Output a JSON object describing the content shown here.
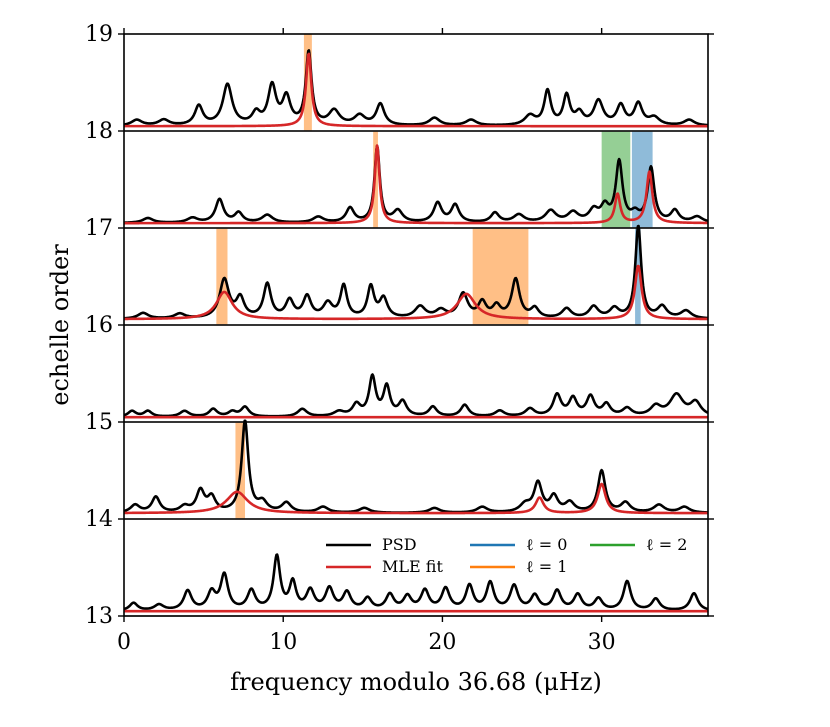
{
  "chart_data": {
    "type": "line",
    "title": "",
    "xlabel": "frequency modulo 36.68 (μHz)",
    "ylabel": "echelle order",
    "xlim": [
      0,
      36.68
    ],
    "ylim": [
      13,
      19
    ],
    "xticks": [
      0,
      10,
      20,
      30
    ],
    "yticks": [
      13,
      14,
      15,
      16,
      17,
      18,
      19
    ],
    "legend": {
      "position": "bottom-right",
      "entries": [
        {
          "label": "PSD",
          "color": "#000000"
        },
        {
          "label": "MLE fit",
          "color": "#d62728"
        },
        {
          "label": "ℓ = 0",
          "color": "#1f77b4"
        },
        {
          "label": "ℓ = 1",
          "color": "#ff7f0e"
        },
        {
          "label": "ℓ = 2",
          "color": "#2ca02c"
        }
      ]
    },
    "orders": [
      {
        "order": 18,
        "baseline": 18.05,
        "psd_peaks": [
          [
            0.8,
            0.06,
            0.4
          ],
          [
            2.5,
            0.06,
            0.4
          ],
          [
            4.7,
            0.2,
            0.3
          ],
          [
            6.5,
            0.42,
            0.35
          ],
          [
            8.3,
            0.12,
            0.3
          ],
          [
            9.3,
            0.4,
            0.3
          ],
          [
            10.2,
            0.28,
            0.3
          ],
          [
            11.6,
            0.75,
            0.22
          ],
          [
            13.2,
            0.15,
            0.4
          ],
          [
            14.8,
            0.1,
            0.4
          ],
          [
            16.1,
            0.22,
            0.3
          ],
          [
            19.5,
            0.08,
            0.4
          ],
          [
            21.8,
            0.06,
            0.4
          ],
          [
            25.5,
            0.1,
            0.4
          ],
          [
            26.6,
            0.35,
            0.25
          ],
          [
            27.8,
            0.3,
            0.25
          ],
          [
            28.6,
            0.12,
            0.3
          ],
          [
            29.8,
            0.25,
            0.35
          ],
          [
            31.2,
            0.2,
            0.3
          ],
          [
            32.3,
            0.22,
            0.3
          ],
          [
            33.3,
            0.08,
            0.4
          ],
          [
            35.5,
            0.06,
            0.4
          ]
        ],
        "fit_peaks": [
          [
            11.6,
            0.75,
            0.2
          ]
        ],
        "bands": [
          {
            "l": 1,
            "start": 11.3,
            "end": 11.8
          }
        ]
      },
      {
        "order": 17,
        "baseline": 17.05,
        "psd_peaks": [
          [
            1.5,
            0.05,
            0.4
          ],
          [
            4.3,
            0.05,
            0.4
          ],
          [
            6.0,
            0.24,
            0.3
          ],
          [
            7.2,
            0.1,
            0.3
          ],
          [
            9.0,
            0.08,
            0.4
          ],
          [
            12.2,
            0.06,
            0.4
          ],
          [
            14.2,
            0.15,
            0.3
          ],
          [
            15.9,
            0.78,
            0.2
          ],
          [
            17.2,
            0.12,
            0.35
          ],
          [
            19.7,
            0.2,
            0.3
          ],
          [
            20.8,
            0.18,
            0.3
          ],
          [
            23.3,
            0.1,
            0.3
          ],
          [
            24.8,
            0.08,
            0.4
          ],
          [
            26.8,
            0.12,
            0.4
          ],
          [
            28.2,
            0.1,
            0.4
          ],
          [
            29.5,
            0.12,
            0.35
          ],
          [
            30.2,
            0.15,
            0.3
          ],
          [
            31.1,
            0.62,
            0.25
          ],
          [
            32.1,
            0.08,
            0.3
          ],
          [
            33.1,
            0.56,
            0.25
          ],
          [
            34.6,
            0.12,
            0.3
          ],
          [
            36.0,
            0.06,
            0.4
          ]
        ],
        "fit_peaks": [
          [
            15.9,
            0.8,
            0.18
          ],
          [
            31.0,
            0.3,
            0.2
          ],
          [
            33.0,
            0.53,
            0.22
          ]
        ],
        "bands": [
          {
            "l": 1,
            "start": 15.65,
            "end": 15.95
          },
          {
            "l": 2,
            "start": 30.0,
            "end": 31.8
          },
          {
            "l": 0,
            "start": 31.9,
            "end": 33.2
          }
        ]
      },
      {
        "order": 16,
        "baseline": 16.06,
        "psd_peaks": [
          [
            1.2,
            0.06,
            0.4
          ],
          [
            3.5,
            0.05,
            0.4
          ],
          [
            6.3,
            0.4,
            0.35
          ],
          [
            7.3,
            0.2,
            0.3
          ],
          [
            9.0,
            0.35,
            0.28
          ],
          [
            10.4,
            0.18,
            0.3
          ],
          [
            11.5,
            0.22,
            0.3
          ],
          [
            12.8,
            0.15,
            0.35
          ],
          [
            13.8,
            0.33,
            0.25
          ],
          [
            15.5,
            0.32,
            0.25
          ],
          [
            16.3,
            0.2,
            0.3
          ],
          [
            18.6,
            0.12,
            0.4
          ],
          [
            19.9,
            0.08,
            0.4
          ],
          [
            21.3,
            0.25,
            0.35
          ],
          [
            22.5,
            0.16,
            0.3
          ],
          [
            23.4,
            0.12,
            0.3
          ],
          [
            24.6,
            0.4,
            0.3
          ],
          [
            25.8,
            0.1,
            0.3
          ],
          [
            27.8,
            0.1,
            0.35
          ],
          [
            29.5,
            0.12,
            0.35
          ],
          [
            30.8,
            0.1,
            0.35
          ],
          [
            32.3,
            0.95,
            0.22
          ],
          [
            33.8,
            0.12,
            0.35
          ],
          [
            35.3,
            0.08,
            0.4
          ]
        ],
        "fit_peaks": [
          [
            6.3,
            0.28,
            0.6
          ],
          [
            21.5,
            0.26,
            0.7
          ],
          [
            32.3,
            0.55,
            0.25
          ]
        ],
        "bands": [
          {
            "l": 1,
            "start": 5.8,
            "end": 6.5
          },
          {
            "l": 1,
            "start": 21.9,
            "end": 25.4
          },
          {
            "l": 0,
            "start": 32.1,
            "end": 32.45
          }
        ]
      },
      {
        "order": 15,
        "baseline": 15.05,
        "psd_peaks": [
          [
            0.5,
            0.06,
            0.3
          ],
          [
            1.5,
            0.06,
            0.3
          ],
          [
            3.8,
            0.06,
            0.35
          ],
          [
            5.6,
            0.08,
            0.3
          ],
          [
            6.8,
            0.05,
            0.3
          ],
          [
            7.6,
            0.1,
            0.3
          ],
          [
            11.2,
            0.08,
            0.35
          ],
          [
            13.5,
            0.05,
            0.4
          ],
          [
            14.6,
            0.12,
            0.3
          ],
          [
            15.6,
            0.4,
            0.25
          ],
          [
            16.5,
            0.3,
            0.25
          ],
          [
            17.5,
            0.15,
            0.3
          ],
          [
            19.4,
            0.1,
            0.3
          ],
          [
            21.4,
            0.12,
            0.3
          ],
          [
            23.6,
            0.06,
            0.35
          ],
          [
            25.5,
            0.08,
            0.35
          ],
          [
            27.2,
            0.22,
            0.3
          ],
          [
            28.2,
            0.18,
            0.3
          ],
          [
            29.3,
            0.2,
            0.3
          ],
          [
            30.3,
            0.12,
            0.3
          ],
          [
            31.6,
            0.08,
            0.35
          ],
          [
            33.4,
            0.1,
            0.4
          ],
          [
            34.7,
            0.22,
            0.5
          ],
          [
            35.9,
            0.14,
            0.4
          ]
        ],
        "fit_peaks": [],
        "bands": []
      },
      {
        "order": 14,
        "baseline": 14.06,
        "psd_peaks": [
          [
            0.7,
            0.08,
            0.35
          ],
          [
            2.0,
            0.16,
            0.3
          ],
          [
            3.8,
            0.06,
            0.35
          ],
          [
            4.8,
            0.22,
            0.3
          ],
          [
            5.5,
            0.15,
            0.3
          ],
          [
            7.6,
            0.94,
            0.25
          ],
          [
            8.7,
            0.1,
            0.35
          ],
          [
            10.2,
            0.1,
            0.35
          ],
          [
            12.5,
            0.06,
            0.4
          ],
          [
            15.1,
            0.05,
            0.4
          ],
          [
            19.5,
            0.05,
            0.4
          ],
          [
            22.5,
            0.06,
            0.4
          ],
          [
            25.2,
            0.08,
            0.4
          ],
          [
            26.0,
            0.3,
            0.3
          ],
          [
            27.0,
            0.16,
            0.3
          ],
          [
            28.0,
            0.1,
            0.35
          ],
          [
            30.0,
            0.43,
            0.28
          ],
          [
            31.5,
            0.1,
            0.35
          ],
          [
            33.6,
            0.08,
            0.4
          ],
          [
            35.2,
            0.06,
            0.4
          ]
        ],
        "fit_peaks": [
          [
            7.1,
            0.22,
            0.8
          ],
          [
            26.1,
            0.16,
            0.3
          ],
          [
            30.0,
            0.3,
            0.3
          ]
        ],
        "bands": [
          {
            "l": 1,
            "start": 7.0,
            "end": 7.6
          }
        ]
      },
      {
        "order": 13,
        "baseline": 13.05,
        "psd_peaks": [
          [
            0.6,
            0.08,
            0.3
          ],
          [
            2.2,
            0.06,
            0.35
          ],
          [
            4.0,
            0.2,
            0.3
          ],
          [
            5.5,
            0.18,
            0.3
          ],
          [
            6.3,
            0.36,
            0.28
          ],
          [
            8.0,
            0.2,
            0.3
          ],
          [
            9.6,
            0.55,
            0.25
          ],
          [
            10.6,
            0.28,
            0.25
          ],
          [
            11.7,
            0.2,
            0.3
          ],
          [
            12.9,
            0.22,
            0.3
          ],
          [
            14.0,
            0.18,
            0.3
          ],
          [
            15.3,
            0.12,
            0.3
          ],
          [
            16.7,
            0.16,
            0.3
          ],
          [
            17.8,
            0.14,
            0.3
          ],
          [
            18.9,
            0.2,
            0.3
          ],
          [
            20.2,
            0.22,
            0.3
          ],
          [
            21.7,
            0.25,
            0.28
          ],
          [
            23.0,
            0.28,
            0.28
          ],
          [
            24.5,
            0.25,
            0.3
          ],
          [
            25.8,
            0.15,
            0.3
          ],
          [
            27.2,
            0.2,
            0.3
          ],
          [
            28.5,
            0.16,
            0.3
          ],
          [
            29.8,
            0.12,
            0.3
          ],
          [
            31.6,
            0.3,
            0.28
          ],
          [
            33.4,
            0.12,
            0.3
          ],
          [
            35.8,
            0.18,
            0.3
          ]
        ],
        "fit_peaks": [],
        "bands": []
      }
    ]
  }
}
